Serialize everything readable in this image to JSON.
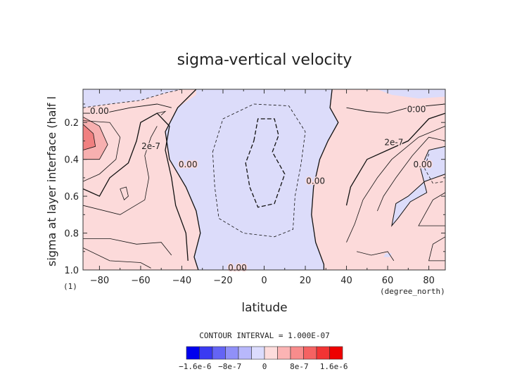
{
  "chart_data": {
    "type": "heatmap",
    "title": "sigma-vertical velocity",
    "xlabel": "latitude",
    "ylabel": "sigma at layer interface (half l",
    "y_unit": "(1)",
    "x_unit": "(degree_north)",
    "xlim": [
      -88,
      88
    ],
    "ylim": [
      0.02,
      1.0
    ],
    "y_inverted": true,
    "x_ticks": [
      -80,
      -60,
      -40,
      -20,
      0,
      20,
      40,
      60,
      80
    ],
    "y_ticks": [
      0.2,
      0.4,
      0.6,
      0.8,
      1.0
    ],
    "x_tick_labels": [
      "−80",
      "−60",
      "−40",
      "−20",
      "0",
      "20",
      "40",
      "60",
      "80"
    ],
    "y_tick_labels": [
      "0.2",
      "0.4",
      "0.6",
      "0.8",
      "1.0"
    ],
    "contour_interval_text": "CONTOUR INTERVAL = 1.000E-07",
    "contour_labels": [
      {
        "text": "0.00",
        "lat": -80,
        "sigma": 0.14
      },
      {
        "text": "2e-7",
        "lat": -55,
        "sigma": 0.33
      },
      {
        "text": "0.00",
        "lat": -37,
        "sigma": 0.43
      },
      {
        "text": "0.00",
        "lat": -13,
        "sigma": 0.99
      },
      {
        "text": "0.00",
        "lat": 25,
        "sigma": 0.52
      },
      {
        "text": "2e-7",
        "lat": 63,
        "sigma": 0.31
      },
      {
        "text": "0.00",
        "lat": 74,
        "sigma": 0.13
      },
      {
        "text": "0.00",
        "lat": 77,
        "sigma": 0.43
      }
    ],
    "colorbar": {
      "colors": [
        "#0000ee",
        "#3a3af2",
        "#6464f5",
        "#9090f8",
        "#b8b8fb",
        "#dcdcfd",
        "#fddcdc",
        "#fbb4b4",
        "#f88c8c",
        "#f56262",
        "#f23434",
        "#ee0000"
      ],
      "labels": [
        "−1.6e-6",
        "−8e-7",
        "0",
        "8e-7",
        "1.6e-6"
      ],
      "label_values": [
        -1.6e-06,
        -8e-07,
        0,
        8e-07,
        1.6e-06
      ],
      "range": [
        -1.8e-06,
        1.8e-06
      ]
    },
    "field_colors": {
      "positive_weak": "#fcdada",
      "positive_mid": "#f7b0b0",
      "positive_strong": "#f08080",
      "negative_weak": "#dcdcfa"
    }
  }
}
